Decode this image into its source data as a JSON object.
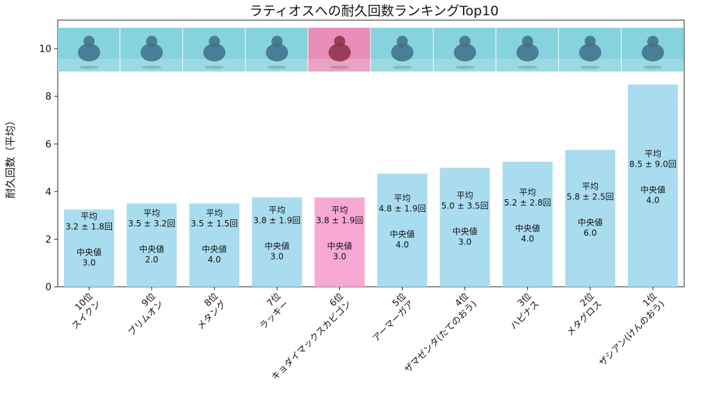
{
  "chart_data": {
    "type": "bar",
    "title": "ラティオスへの耐久回数ランキングTop10",
    "xlabel": "",
    "ylabel": "耐久回数（平均）",
    "ylim": [
      0,
      11.2
    ],
    "yticks": [
      0,
      2,
      4,
      6,
      8,
      10
    ],
    "grid": false,
    "categories": [
      [
        "10位",
        "スイクン"
      ],
      [
        "9位",
        "ブリムオン"
      ],
      [
        "8位",
        "メタング"
      ],
      [
        "7位",
        "ラッキー"
      ],
      [
        "6位",
        "キョダイマックスカビゴン"
      ],
      [
        "5位",
        "アーマーガア"
      ],
      [
        "4位",
        "ザマゼンタ(たてのおう)"
      ],
      [
        "3位",
        "ハピナス"
      ],
      [
        "2位",
        "メタグロス"
      ],
      [
        "1位",
        "ザシアン(けんのおう)"
      ]
    ],
    "values": [
      3.25,
      3.5,
      3.5,
      3.75,
      3.75,
      4.75,
      5.0,
      5.25,
      5.75,
      8.5
    ],
    "bar_labels": [
      [
        "平均",
        "3.2 ± 1.8回",
        "中央値",
        "3.0"
      ],
      [
        "平均",
        "3.5 ± 3.2回",
        "中央値",
        "2.0"
      ],
      [
        "平均",
        "3.5 ± 1.5回",
        "中央値",
        "4.0"
      ],
      [
        "平均",
        "3.8 ± 1.9回",
        "中央値",
        "3.0"
      ],
      [
        "平均",
        "3.8 ± 1.9回",
        "中央値",
        "3.0"
      ],
      [
        "平均",
        "4.8 ± 1.9回",
        "中央値",
        "4.0"
      ],
      [
        "平均",
        "5.0 ± 3.5回",
        "中央値",
        "3.0"
      ],
      [
        "平均",
        "5.2 ± 2.8回",
        "中央値",
        "4.0"
      ],
      [
        "平均",
        "5.8 ± 2.5回",
        "中央値",
        "6.0"
      ],
      [
        "平均",
        "8.5 ± 9.0回",
        "中央値",
        "4.0"
      ]
    ],
    "colors": [
      "#aadcef",
      "#aadcef",
      "#aadcef",
      "#aadcef",
      "#f7a8d3",
      "#aadcef",
      "#aadcef",
      "#aadcef",
      "#aadcef",
      "#aadcef"
    ],
    "image_backgrounds": [
      "#86d2dd",
      "#86d2dd",
      "#86d2dd",
      "#86d2dd",
      "#e78fb8",
      "#86d2dd",
      "#86d2dd",
      "#86d2dd",
      "#86d2dd",
      "#86d2dd"
    ],
    "images": [
      "suicune",
      "primarina",
      "metang",
      "chansey",
      "gigantamax-snorlax",
      "corviknight",
      "zamazenta-crowned-shield",
      "blissey",
      "metagross",
      "zacian-crowned-sword"
    ]
  }
}
